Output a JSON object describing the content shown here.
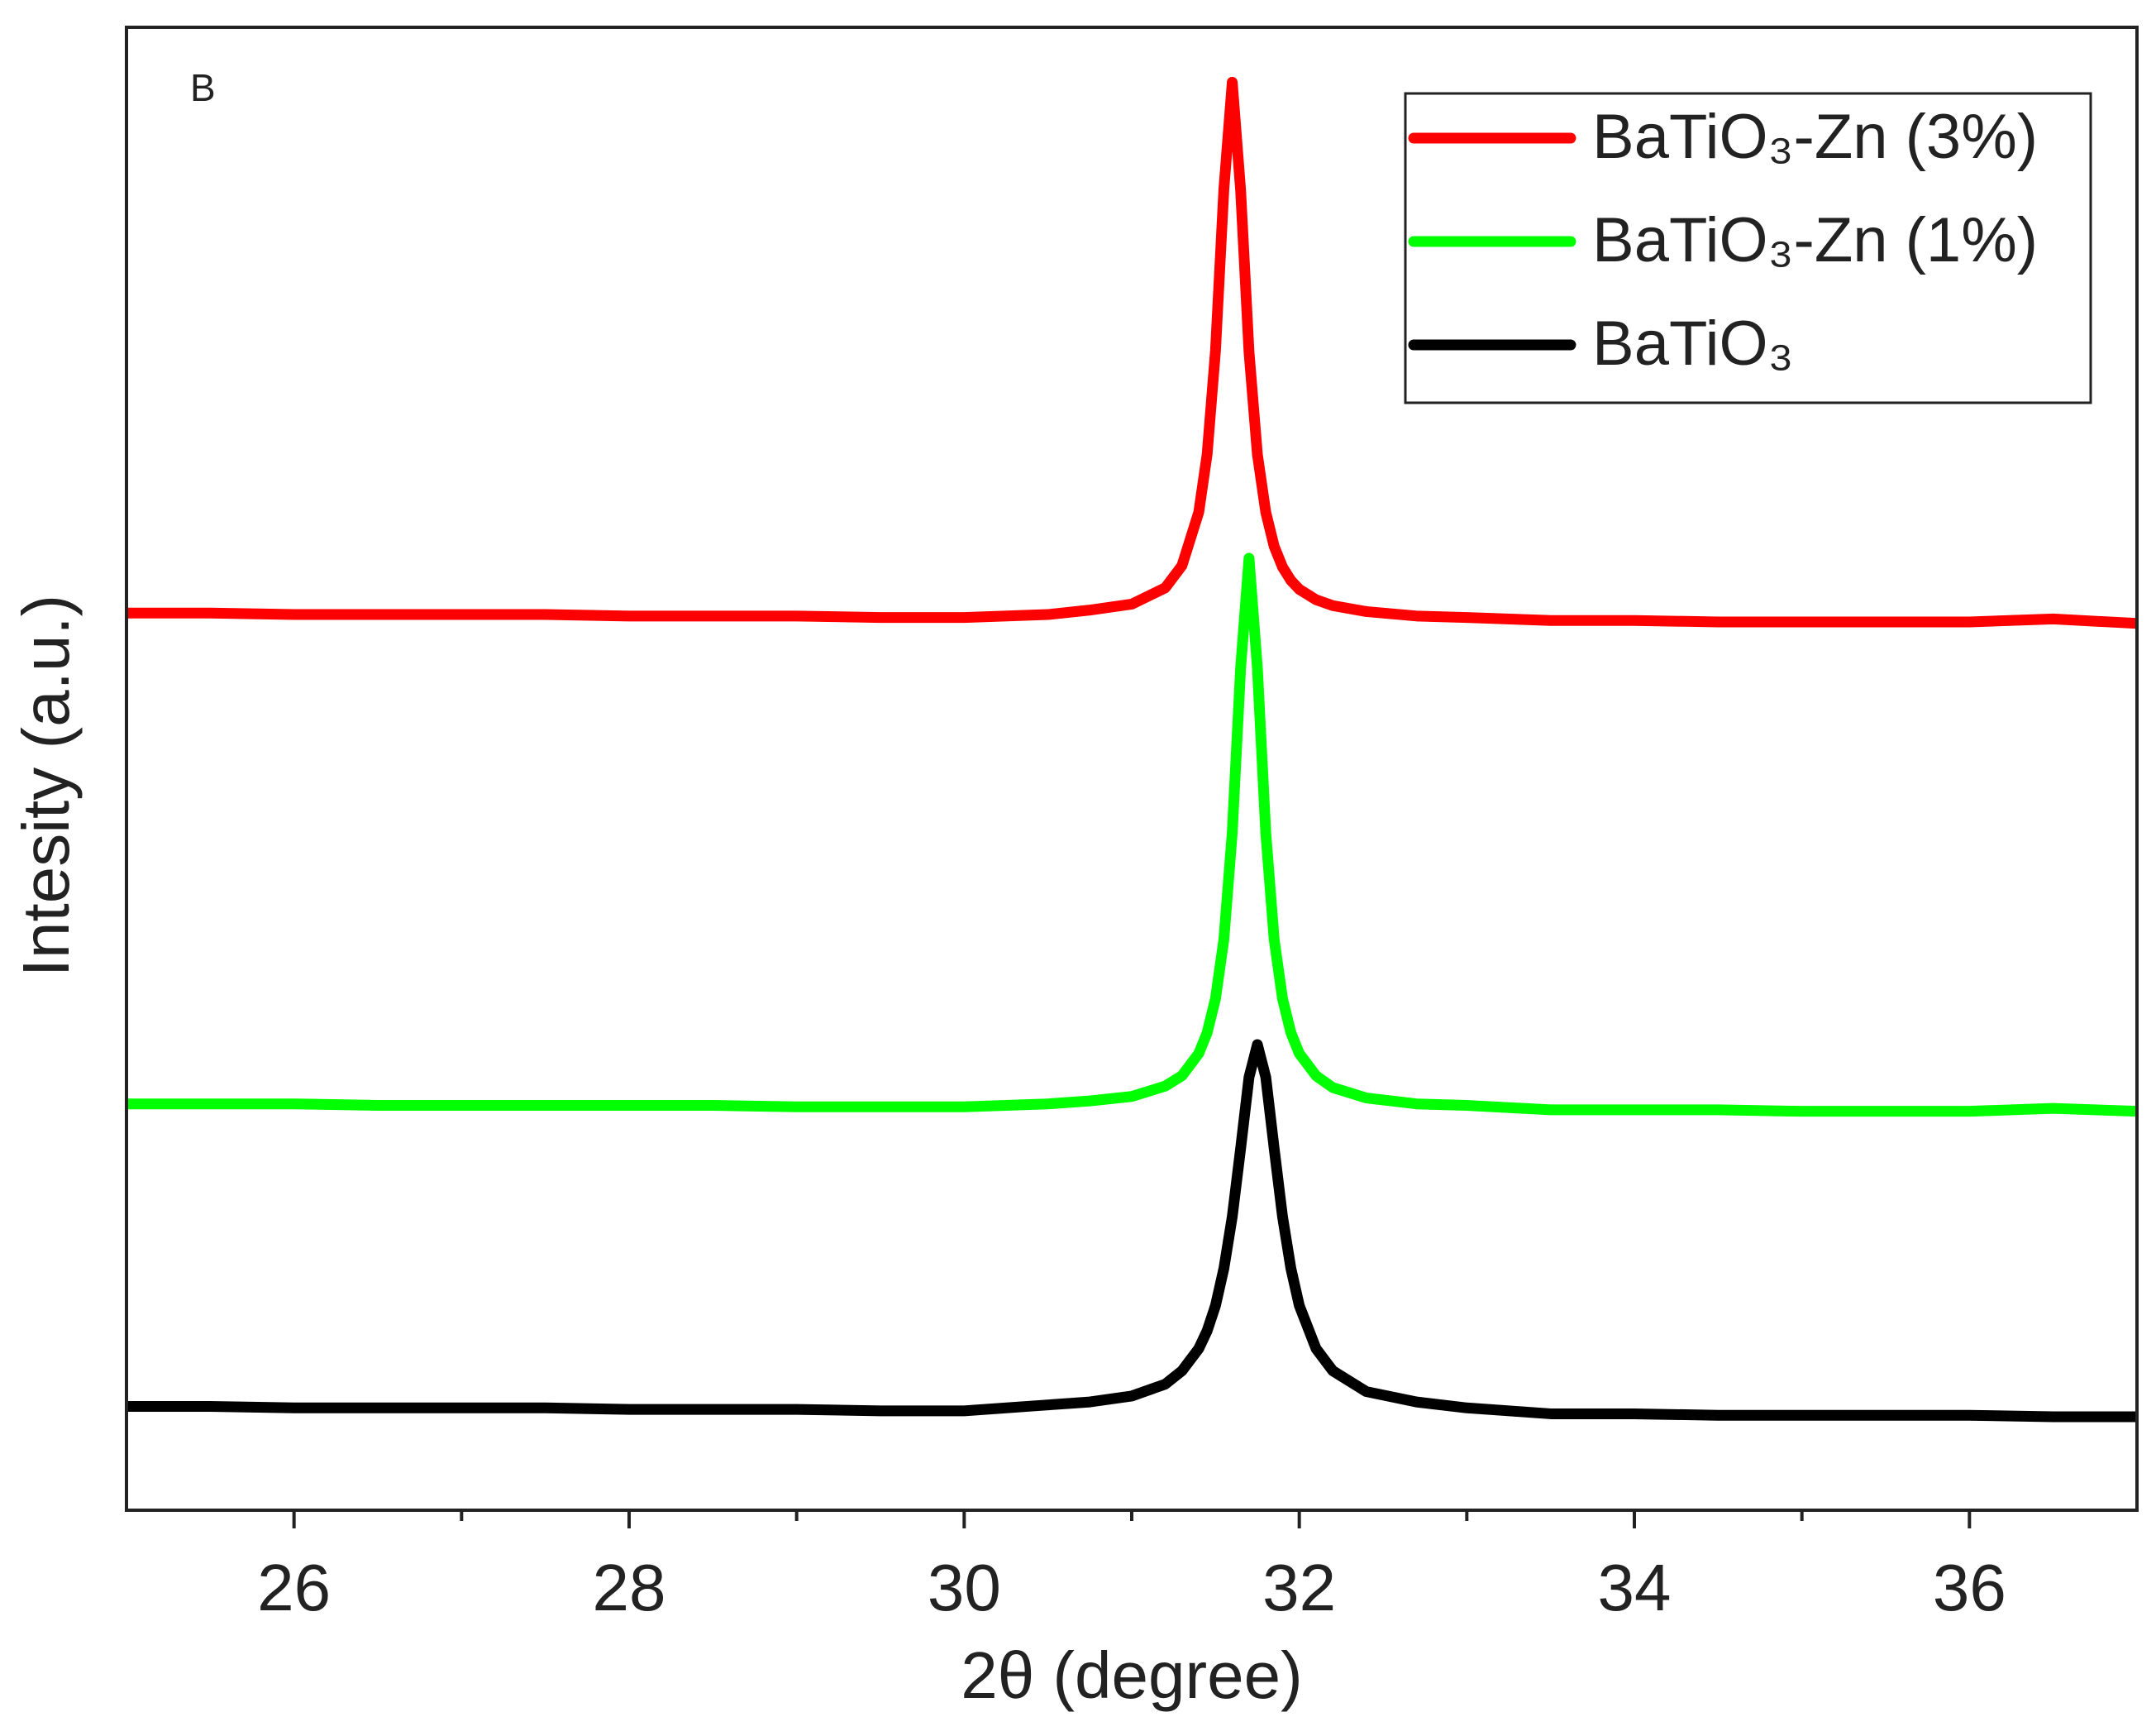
{
  "chart_data": {
    "type": "line",
    "annotation": "B",
    "xlabel": "2θ (degree)",
    "ylabel": "Intesity (a.u.)",
    "xlim": [
      25,
      37
    ],
    "ylim": [
      0,
      100
    ],
    "xticks": [
      26,
      28,
      30,
      32,
      34,
      36
    ],
    "xminorticks": [
      27,
      29,
      31,
      33,
      35
    ],
    "grid": false,
    "legend": "top-right",
    "x": [
      25,
      25.5,
      26,
      26.5,
      27,
      27.5,
      28,
      28.5,
      29,
      29.5,
      30,
      30.5,
      30.75,
      31,
      31.2,
      31.3,
      31.4,
      31.45,
      31.5,
      31.55,
      31.6,
      31.65,
      31.7,
      31.75,
      31.8,
      31.85,
      31.9,
      31.95,
      32,
      32.1,
      32.2,
      32.4,
      32.7,
      33,
      33.5,
      34,
      34.5,
      35,
      35.5,
      36,
      36.5,
      37
    ],
    "series": [
      {
        "name": "BaTiO₃-Zn (3%)",
        "color": "#ff0000",
        "values": [
          60.5,
          60.5,
          60.4,
          60.4,
          60.4,
          60.4,
          60.3,
          60.3,
          60.3,
          60.2,
          60.2,
          60.4,
          60.7,
          61.1,
          62.2,
          63.7,
          67.3,
          71.2,
          78.2,
          89.1,
          96.3,
          89.0,
          78.1,
          71.2,
          67.3,
          65.0,
          63.6,
          62.7,
          62.1,
          61.4,
          61.0,
          60.6,
          60.3,
          60.2,
          60.0,
          60.0,
          59.9,
          59.9,
          59.9,
          59.9,
          60.1,
          59.8
        ]
      },
      {
        "name": "BaTiO₃-Zn (1%)",
        "color": "#00ff00",
        "values": [
          27.4,
          27.4,
          27.4,
          27.3,
          27.3,
          27.3,
          27.3,
          27.3,
          27.2,
          27.2,
          27.2,
          27.4,
          27.6,
          27.9,
          28.6,
          29.3,
          30.8,
          32.2,
          34.5,
          38.5,
          45.7,
          56.8,
          64.2,
          56.8,
          45.7,
          38.5,
          34.5,
          32.2,
          30.8,
          29.3,
          28.5,
          27.8,
          27.4,
          27.3,
          27.0,
          27.0,
          27.0,
          26.9,
          26.9,
          26.9,
          27.1,
          26.9
        ]
      },
      {
        "name": "BaTiO₃",
        "color": "#000000",
        "values": [
          7.0,
          7.0,
          6.9,
          6.9,
          6.9,
          6.9,
          6.8,
          6.8,
          6.8,
          6.7,
          6.7,
          7.1,
          7.3,
          7.7,
          8.5,
          9.4,
          10.9,
          12.1,
          13.8,
          16.3,
          19.8,
          24.4,
          29.2,
          31.4,
          29.2,
          24.4,
          19.8,
          16.3,
          13.8,
          10.9,
          9.4,
          8.0,
          7.3,
          6.9,
          6.5,
          6.5,
          6.4,
          6.4,
          6.4,
          6.4,
          6.3,
          6.3
        ]
      }
    ]
  }
}
